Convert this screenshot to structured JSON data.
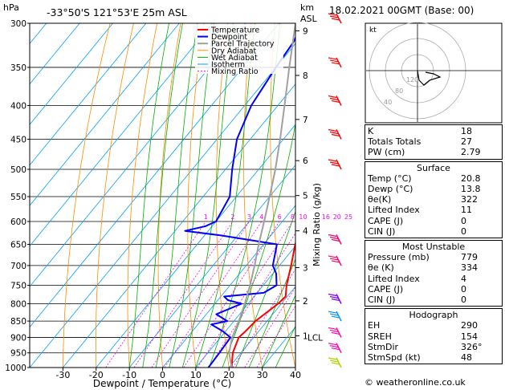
{
  "header": {
    "location": "-33°50'S  121°53'E  25m  ASL",
    "datetime": "18.02.2021  00GMT  (Base: 00)",
    "pressure_unit": "hPa",
    "height_unit_km": "km",
    "height_unit_asl": "ASL"
  },
  "colors": {
    "temperature": "#ff0000",
    "dewpoint": "#0000ff",
    "parcel": "#a0a0a0",
    "dry_adiabat": "#ff8c00",
    "wet_adiabat": "#00b000",
    "isotherm": "#00a0ff",
    "mixing_ratio": "#ff00ff"
  },
  "chart_data": {
    "type": "line",
    "xlabel": "Dewpoint / Temperature (°C)",
    "ylabel": "Mixing Ratio (g/kg)",
    "xlim": [
      -40,
      40
    ],
    "ylim": [
      1000,
      300
    ],
    "pressure_ticks": [
      300,
      350,
      400,
      450,
      500,
      550,
      600,
      650,
      700,
      750,
      800,
      850,
      900,
      950,
      1000
    ],
    "temperature_ticks": [
      -30,
      -20,
      -10,
      0,
      10,
      20,
      30,
      40
    ],
    "height_ticks_km": [
      {
        "label": "9",
        "p": 308
      },
      {
        "label": "8",
        "p": 360
      },
      {
        "label": "7",
        "p": 420
      },
      {
        "label": "6",
        "p": 485
      },
      {
        "label": "5",
        "p": 548
      },
      {
        "label": "4",
        "p": 620
      },
      {
        "label": "3",
        "p": 705
      },
      {
        "label": "2",
        "p": 792
      },
      {
        "label": "1",
        "p": 895
      }
    ],
    "lcl": {
      "label": "LCL",
      "p": 900
    },
    "mixing_ratio_labels": [
      "1",
      "2",
      "3",
      "4",
      "6",
      "8",
      "10",
      "16",
      "20",
      "25"
    ],
    "mixing_ratio_values": [
      1,
      2,
      3,
      4,
      6,
      8,
      10,
      16,
      20,
      25
    ],
    "legend": [
      "Temperature",
      "Dewpoint",
      "Parcel Trajectory",
      "Dry Adiabat",
      "Wet Adiabat",
      "Isotherm",
      "Mixing Ratio"
    ],
    "legend_position": "top-left",
    "series": [
      {
        "name": "Temperature",
        "points": [
          [
            1000,
            20.8
          ],
          [
            950,
            17.5
          ],
          [
            900,
            15.5
          ],
          [
            880,
            16
          ],
          [
            850,
            16.5
          ],
          [
            800,
            19
          ],
          [
            780,
            19.5
          ],
          [
            750,
            17
          ],
          [
            700,
            13.5
          ],
          [
            650,
            9.5
          ],
          [
            600,
            6
          ],
          [
            550,
            2
          ],
          [
            500,
            -3.5
          ],
          [
            450,
            -10
          ],
          [
            400,
            -15
          ],
          [
            350,
            -23
          ],
          [
            300,
            -30
          ]
        ]
      },
      {
        "name": "Dewpoint",
        "points": [
          [
            1000,
            13.8
          ],
          [
            950,
            13.5
          ],
          [
            900,
            13
          ],
          [
            880,
            9
          ],
          [
            860,
            4
          ],
          [
            850,
            8
          ],
          [
            830,
            3
          ],
          [
            800,
            8
          ],
          [
            790,
            3
          ],
          [
            780,
            1
          ],
          [
            770,
            12
          ],
          [
            750,
            14
          ],
          [
            720,
            11
          ],
          [
            700,
            8
          ],
          [
            650,
            4
          ],
          [
            630,
            -15
          ],
          [
            620,
            -27
          ],
          [
            610,
            -22
          ],
          [
            600,
            -20
          ],
          [
            550,
            -22
          ],
          [
            500,
            -28
          ],
          [
            450,
            -34
          ],
          [
            400,
            -38
          ],
          [
            350,
            -40
          ],
          [
            320,
            -41
          ],
          [
            300,
            -43
          ]
        ]
      },
      {
        "name": "Parcel Trajectory",
        "points": [
          [
            1000,
            20.8
          ],
          [
            950,
            16.4
          ],
          [
            900,
            13.5
          ],
          [
            850,
            11.5
          ],
          [
            800,
            9
          ],
          [
            750,
            6
          ],
          [
            700,
            2.5
          ],
          [
            650,
            -1.5
          ],
          [
            600,
            -5.5
          ],
          [
            550,
            -10
          ],
          [
            500,
            -15
          ],
          [
            450,
            -21
          ],
          [
            400,
            -28
          ],
          [
            350,
            -36
          ],
          [
            300,
            -45
          ]
        ]
      }
    ]
  },
  "hodograph": {
    "label": "kt",
    "rings": [
      "40",
      "80",
      "120"
    ]
  },
  "indices": [
    {
      "label": "K",
      "value": "18"
    },
    {
      "label": "Totals Totals",
      "value": "27"
    },
    {
      "label": "PW (cm)",
      "value": "2.79"
    }
  ],
  "surface": {
    "title": "Surface",
    "rows": [
      {
        "label": "Temp (°C)",
        "value": "20.8"
      },
      {
        "label": "Dewp (°C)",
        "value": "13.8"
      },
      {
        "label": "θe(K)",
        "value": "322"
      },
      {
        "label": "Lifted Index",
        "value": "11"
      },
      {
        "label": "CAPE (J)",
        "value": "0"
      },
      {
        "label": "CIN (J)",
        "value": "0"
      }
    ]
  },
  "most_unstable": {
    "title": "Most Unstable",
    "rows": [
      {
        "label": "Pressure (mb)",
        "value": "779"
      },
      {
        "label": "θe (K)",
        "value": "334"
      },
      {
        "label": "Lifted Index",
        "value": "4"
      },
      {
        "label": "CAPE (J)",
        "value": "0"
      },
      {
        "label": "CIN (J)",
        "value": "0"
      }
    ]
  },
  "hodograph_box": {
    "title": "Hodograph",
    "rows": [
      {
        "label": "EH",
        "value": "290"
      },
      {
        "label": "SREH",
        "value": "154"
      },
      {
        "label": "StmDir",
        "value": "326°"
      },
      {
        "label": "StmSpd (kt)",
        "value": "48"
      }
    ]
  },
  "credit": "© weatheronline.co.uk"
}
